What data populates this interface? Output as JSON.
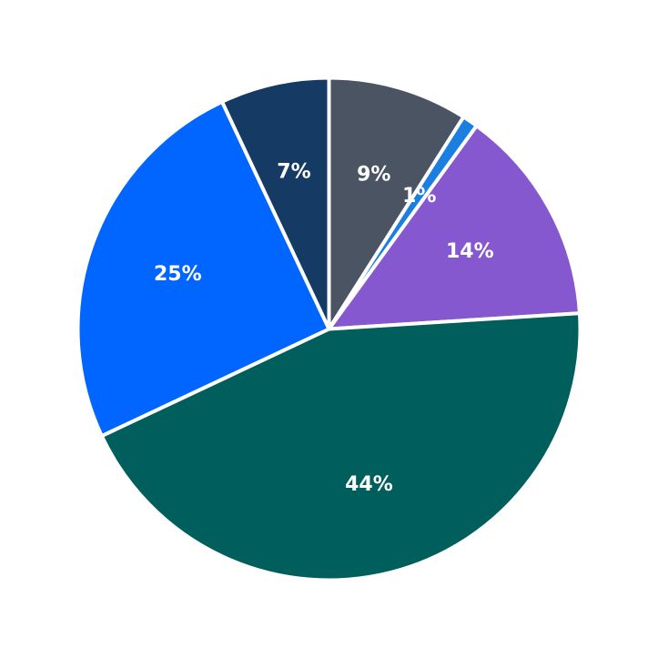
{
  "chart_data": {
    "type": "pie",
    "title": "",
    "start_angle_deg": 0,
    "direction": "clockwise",
    "slices": [
      {
        "value": 9,
        "label": "9%",
        "color": "#4a5462"
      },
      {
        "value": 1,
        "label": "1%",
        "color": "#1a7fe0"
      },
      {
        "value": 14,
        "label": "14%",
        "color": "#8658cf"
      },
      {
        "value": 44,
        "label": "44%",
        "color": "#005e5d"
      },
      {
        "value": 25,
        "label": "25%",
        "color": "#0066ff"
      },
      {
        "value": 7,
        "label": "7%",
        "color": "#153a63"
      }
    ]
  }
}
